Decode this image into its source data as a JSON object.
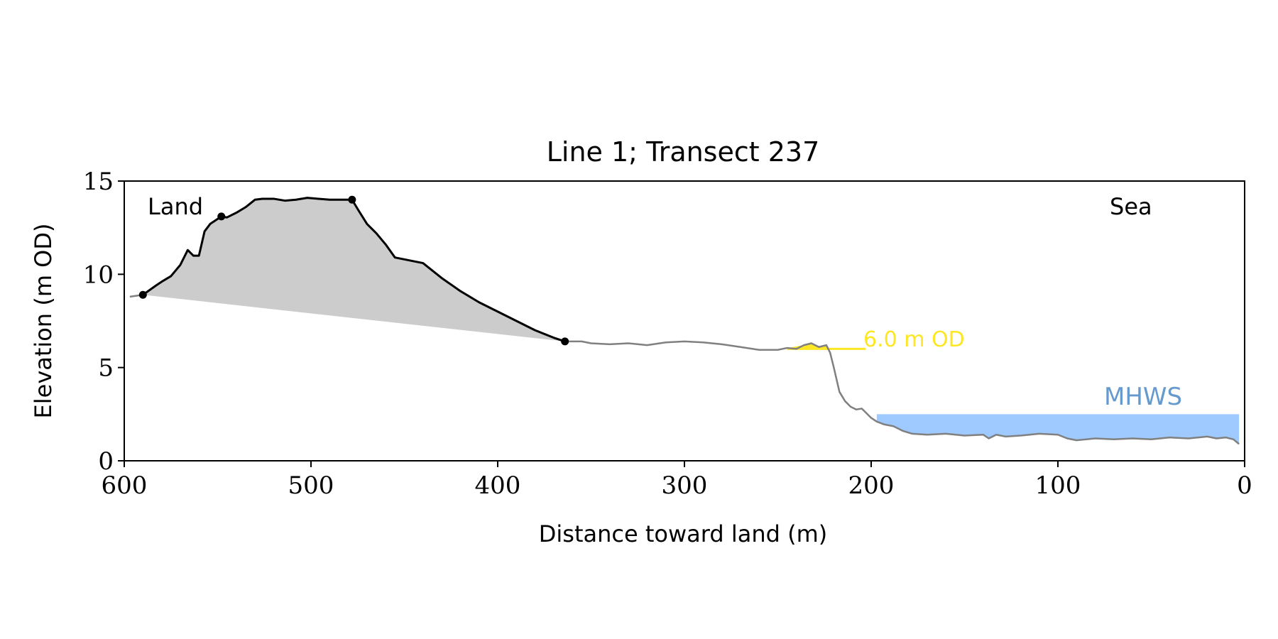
{
  "chart_data": {
    "type": "line",
    "title": "Line 1; Transect 237",
    "xlabel": "Distance toward land (m)",
    "ylabel": "Elevation (m OD)",
    "xlim": [
      600,
      0
    ],
    "ylim": [
      0,
      15
    ],
    "x_ticks": [
      600,
      500,
      400,
      300,
      200,
      100,
      0
    ],
    "x_tick_labels": [
      "600",
      "500",
      "400",
      "300",
      "200",
      "100",
      "0"
    ],
    "y_ticks": [
      0,
      5,
      10,
      15
    ],
    "y_tick_labels": [
      "0",
      "5",
      "10",
      "15"
    ],
    "grid": false,
    "annotations": {
      "land": "Land",
      "sea": "Sea",
      "threshold": "6.0 m OD",
      "mhws": "MHWS"
    },
    "threshold_elevation": 6.0,
    "threshold_range": [
      245,
      203
    ],
    "mhws_elevation": 2.5,
    "mhws_range": [
      197,
      3
    ],
    "markers": [
      {
        "x": 590,
        "y": 8.9
      },
      {
        "x": 548,
        "y": 13.1
      },
      {
        "x": 478,
        "y": 14.0
      },
      {
        "x": 364,
        "y": 6.4
      }
    ],
    "profile": {
      "x": [
        597,
        590,
        583,
        580,
        575,
        570,
        566,
        563,
        560,
        557,
        554,
        551,
        548,
        545,
        540,
        535,
        530,
        526,
        520,
        514,
        508,
        502,
        496,
        490,
        484,
        478,
        475,
        470,
        465,
        460,
        455,
        450,
        445,
        440,
        435,
        430,
        420,
        410,
        400,
        390,
        380,
        370,
        364,
        355,
        350,
        340,
        330,
        320,
        310,
        300,
        290,
        280,
        270,
        260,
        250,
        245,
        240,
        236,
        232,
        228,
        224,
        222,
        220,
        217,
        214,
        211,
        208,
        205,
        202,
        200,
        197,
        193,
        188,
        183,
        178,
        170,
        160,
        150,
        140,
        137,
        133,
        128,
        120,
        110,
        100,
        95,
        90,
        80,
        70,
        60,
        50,
        40,
        30,
        20,
        15,
        10,
        6,
        3
      ],
      "y": [
        8.8,
        8.9,
        9.4,
        9.6,
        9.9,
        10.5,
        11.3,
        11.0,
        11.0,
        12.3,
        12.7,
        12.9,
        13.1,
        13.05,
        13.3,
        13.6,
        14.0,
        14.05,
        14.05,
        13.95,
        14.0,
        14.1,
        14.05,
        14.0,
        14.0,
        14.0,
        13.5,
        12.7,
        12.2,
        11.6,
        10.9,
        10.8,
        10.7,
        10.6,
        10.2,
        9.8,
        9.1,
        8.5,
        8.0,
        7.5,
        7.0,
        6.6,
        6.4,
        6.4,
        6.3,
        6.25,
        6.3,
        6.2,
        6.35,
        6.4,
        6.35,
        6.25,
        6.1,
        5.95,
        5.95,
        6.05,
        6.0,
        6.2,
        6.3,
        6.1,
        6.2,
        5.8,
        5.0,
        3.7,
        3.2,
        2.9,
        2.75,
        2.8,
        2.5,
        2.3,
        2.1,
        1.95,
        1.85,
        1.6,
        1.45,
        1.4,
        1.45,
        1.35,
        1.4,
        1.2,
        1.4,
        1.3,
        1.35,
        1.45,
        1.4,
        1.2,
        1.1,
        1.2,
        1.15,
        1.2,
        1.15,
        1.25,
        1.2,
        1.3,
        1.2,
        1.25,
        1.15,
        0.9
      ]
    },
    "colors": {
      "profile_highlight": "#000000",
      "profile_base": "#808080",
      "volume_fill": "#cccccc",
      "threshold": "#fde725",
      "mhws_fill": "#9ecaff",
      "mhws_text": "#6699cc"
    }
  }
}
